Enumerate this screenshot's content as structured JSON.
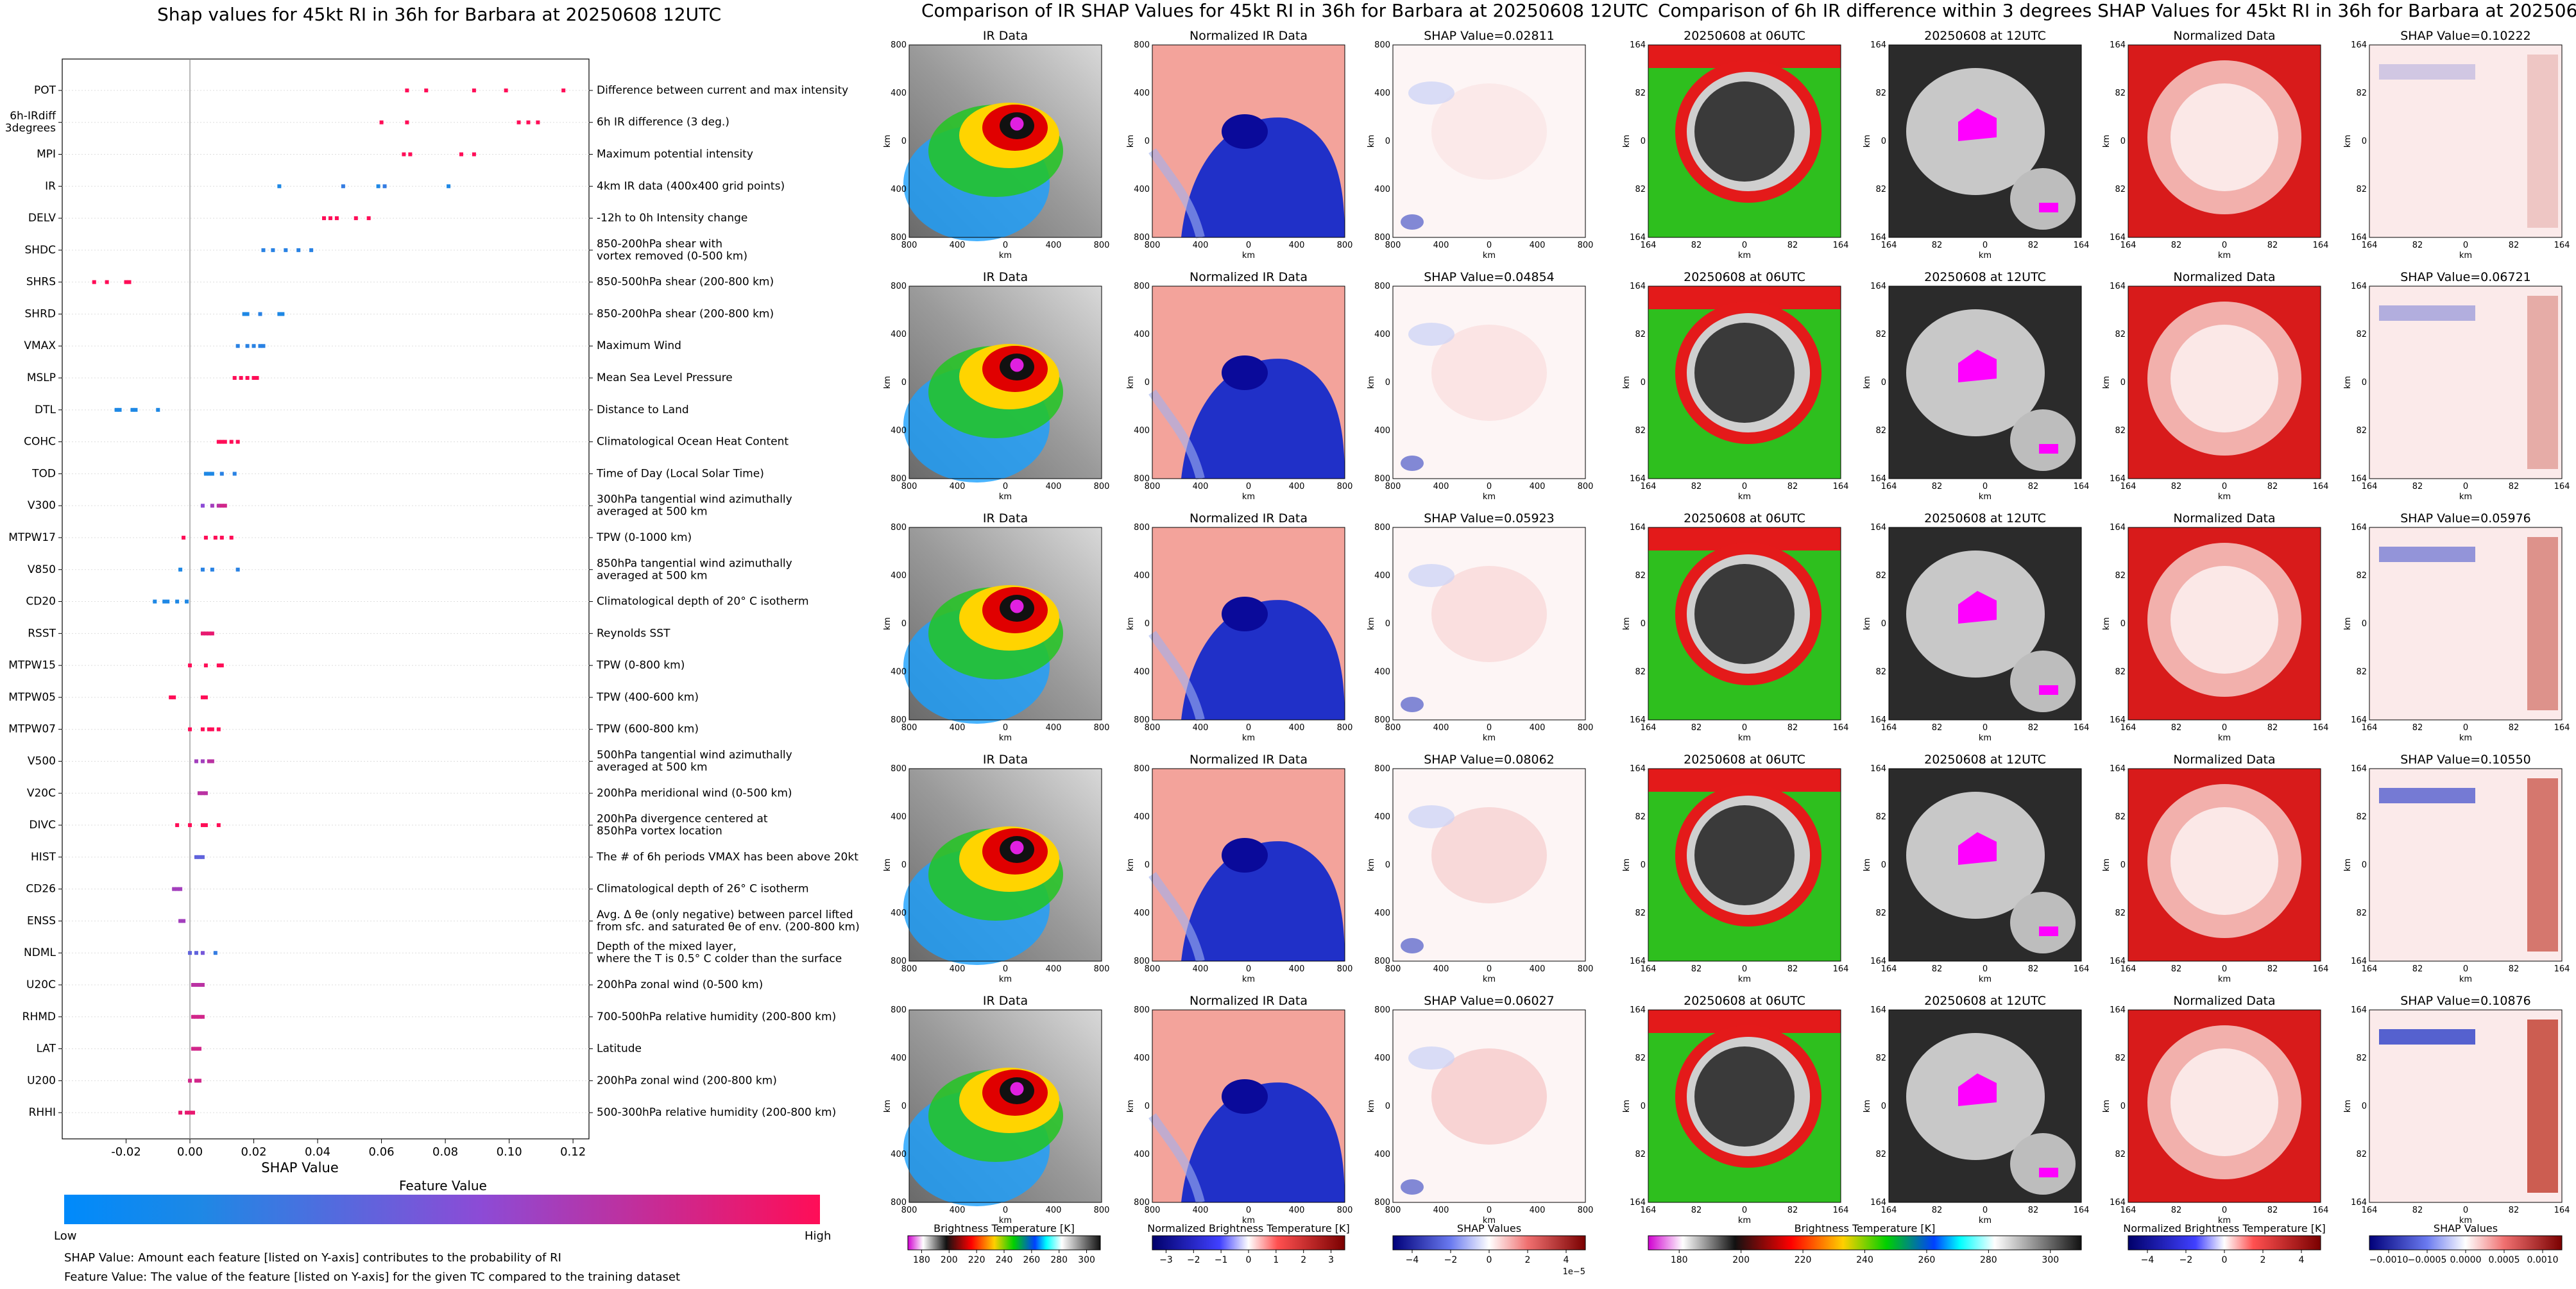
{
  "shap": {
    "title": "Shap values for 45kt RI in 36h for Barbara at 20250608 12UTC",
    "xlabel": "SHAP Value",
    "colorbar_title": "Feature Value",
    "colorbar_low": "Low",
    "colorbar_high": "High",
    "note1": "SHAP Value: Amount each feature [listed on Y-axis] contributes to the probability of RI",
    "note2": "Feature Value: The value of the feature [listed on Y-axis] for the given TC compared to the training dataset",
    "colors": {
      "low": "#1e88e5",
      "mid": "#8c4bd6",
      "high": "#ff0d57"
    }
  },
  "chart_data": [
    {
      "type": "scatter",
      "title": "Shap values for 45kt RI in 36h for Barbara at 20250608 12UTC",
      "xlabel": "SHAP Value",
      "ylabel": "",
      "xlim": [
        -0.04,
        0.125
      ],
      "xticks": [
        "-0.02",
        "0.00",
        "0.02",
        "0.04",
        "0.06",
        "0.08",
        "0.10",
        "0.12"
      ],
      "xtick_values": [
        -0.02,
        0,
        0.02,
        0.04,
        0.06,
        0.08,
        0.1,
        0.12
      ],
      "features": [
        {
          "name": "POT",
          "desc": "Difference between current and max intensity",
          "points": [
            [
              0.068,
              1
            ],
            [
              0.074,
              1
            ],
            [
              0.089,
              1
            ],
            [
              0.099,
              1
            ],
            [
              0.117,
              1
            ]
          ]
        },
        {
          "name": "6h-IRdiff\n3degrees",
          "desc": "6h IR difference (3 deg.)",
          "points": [
            [
              0.06,
              1
            ],
            [
              0.068,
              1
            ],
            [
              0.103,
              1
            ],
            [
              0.106,
              1
            ],
            [
              0.109,
              1
            ]
          ]
        },
        {
          "name": "MPI",
          "desc": "Maximum potential intensity",
          "points": [
            [
              0.067,
              1
            ],
            [
              0.069,
              1
            ],
            [
              0.085,
              1
            ],
            [
              0.089,
              1
            ]
          ]
        },
        {
          "name": "IR",
          "desc": "4km IR data (400x400 grid points)",
          "points": [
            [
              0.028,
              0
            ],
            [
              0.048,
              0.1
            ],
            [
              0.059,
              0
            ],
            [
              0.061,
              0.1
            ],
            [
              0.081,
              0
            ]
          ]
        },
        {
          "name": "DELV",
          "desc": "-12h to 0h Intensity change",
          "points": [
            [
              0.042,
              1
            ],
            [
              0.044,
              1
            ],
            [
              0.046,
              1
            ],
            [
              0.052,
              1
            ],
            [
              0.056,
              1
            ]
          ]
        },
        {
          "name": "SHDC",
          "desc": "850-200hPa shear with\nvortex removed (0-500 km)",
          "points": [
            [
              0.023,
              0.05
            ],
            [
              0.026,
              0.05
            ],
            [
              0.03,
              0.05
            ],
            [
              0.034,
              0.05
            ],
            [
              0.038,
              0.05
            ]
          ]
        },
        {
          "name": "SHRS",
          "desc": "850-500hPa shear (200-800 km)",
          "points": [
            [
              -0.03,
              1
            ],
            [
              -0.026,
              1
            ],
            [
              -0.02,
              1
            ],
            [
              -0.019,
              1
            ]
          ]
        },
        {
          "name": "SHRD",
          "desc": "850-200hPa shear (200-800 km)",
          "points": [
            [
              0.017,
              0
            ],
            [
              0.018,
              0
            ],
            [
              0.022,
              0.05
            ],
            [
              0.028,
              0
            ],
            [
              0.029,
              0
            ]
          ]
        },
        {
          "name": "VMAX",
          "desc": "Maximum Wind",
          "points": [
            [
              0.015,
              0.05
            ],
            [
              0.018,
              0.05
            ],
            [
              0.02,
              0.05
            ],
            [
              0.022,
              0.05
            ],
            [
              0.023,
              0.05
            ]
          ]
        },
        {
          "name": "MSLP",
          "desc": "Mean Sea Level Pressure",
          "points": [
            [
              0.014,
              1
            ],
            [
              0.016,
              1
            ],
            [
              0.018,
              1
            ],
            [
              0.02,
              1
            ],
            [
              0.021,
              1
            ]
          ]
        },
        {
          "name": "DTL",
          "desc": "Distance to Land",
          "points": [
            [
              -0.023,
              0
            ],
            [
              -0.022,
              0
            ],
            [
              -0.018,
              0
            ],
            [
              -0.017,
              0
            ],
            [
              -0.01,
              0
            ]
          ]
        },
        {
          "name": "COHC",
          "desc": "Climatological Ocean Heat Content",
          "points": [
            [
              0.009,
              1
            ],
            [
              0.01,
              1
            ],
            [
              0.011,
              1
            ],
            [
              0.013,
              1
            ],
            [
              0.015,
              1
            ]
          ]
        },
        {
          "name": "TOD",
          "desc": "Time of Day (Local Solar Time)",
          "points": [
            [
              0.005,
              0
            ],
            [
              0.006,
              0
            ],
            [
              0.007,
              0
            ],
            [
              0.01,
              0.05
            ],
            [
              0.014,
              0.05
            ]
          ]
        },
        {
          "name": "V300",
          "desc": "300hPa tangential wind azimuthally\naveraged at 500 km",
          "points": [
            [
              0.004,
              0.5
            ],
            [
              0.007,
              0.6
            ],
            [
              0.009,
              0.7
            ],
            [
              0.01,
              0.8
            ],
            [
              0.011,
              0.8
            ]
          ]
        },
        {
          "name": "MTPW17",
          "desc": "TPW (0-1000 km)",
          "points": [
            [
              -0.002,
              1
            ],
            [
              0.005,
              1
            ],
            [
              0.008,
              1
            ],
            [
              0.01,
              1
            ],
            [
              0.013,
              1
            ]
          ]
        },
        {
          "name": "V850",
          "desc": "850hPa tangential wind azimuthally\naveraged at 500 km",
          "points": [
            [
              -0.003,
              0
            ],
            [
              0.004,
              0.05
            ],
            [
              0.007,
              0.05
            ],
            [
              0.015,
              0.05
            ]
          ]
        },
        {
          "name": "CD20",
          "desc": "Climatological depth of 20° C isotherm",
          "points": [
            [
              -0.011,
              0
            ],
            [
              -0.008,
              0
            ],
            [
              -0.007,
              0
            ],
            [
              -0.004,
              0
            ],
            [
              -0.001,
              0
            ]
          ]
        },
        {
          "name": "RSST",
          "desc": "Reynolds SST",
          "points": [
            [
              0.004,
              0.9
            ],
            [
              0.005,
              0.9
            ],
            [
              0.006,
              0.9
            ],
            [
              0.007,
              0.9
            ]
          ]
        },
        {
          "name": "MTPW15",
          "desc": "TPW (0-800 km)",
          "points": [
            [
              0.0,
              1
            ],
            [
              0.005,
              1
            ],
            [
              0.009,
              1
            ],
            [
              0.01,
              1
            ]
          ]
        },
        {
          "name": "MTPW05",
          "desc": "TPW (400-600 km)",
          "points": [
            [
              -0.006,
              1
            ],
            [
              -0.005,
              1
            ],
            [
              0.004,
              1
            ],
            [
              0.005,
              1
            ]
          ]
        },
        {
          "name": "MTPW07",
          "desc": "TPW (600-800 km)",
          "points": [
            [
              0.0,
              1
            ],
            [
              0.004,
              1
            ],
            [
              0.006,
              1
            ],
            [
              0.007,
              1
            ],
            [
              0.009,
              1
            ]
          ]
        },
        {
          "name": "V500",
          "desc": "500hPa tangential wind azimuthally\naveraged at 500 km",
          "points": [
            [
              0.002,
              0.6
            ],
            [
              0.004,
              0.6
            ],
            [
              0.006,
              0.7
            ],
            [
              0.007,
              0.7
            ]
          ]
        },
        {
          "name": "V20C",
          "desc": "200hPa meridional wind (0-500 km)",
          "points": [
            [
              0.003,
              0.7
            ],
            [
              0.004,
              0.7
            ],
            [
              0.005,
              0.7
            ]
          ]
        },
        {
          "name": "DIVC",
          "desc": "200hPa divergence centered at\n850hPa vortex location",
          "points": [
            [
              -0.004,
              1
            ],
            [
              0.0,
              1
            ],
            [
              0.004,
              1
            ],
            [
              0.005,
              1
            ],
            [
              0.009,
              1
            ]
          ]
        },
        {
          "name": "HIST",
          "desc": "The # of 6h periods VMAX has been above 20kt",
          "points": [
            [
              0.002,
              0.3
            ],
            [
              0.003,
              0.3
            ],
            [
              0.004,
              0.3
            ]
          ]
        },
        {
          "name": "CD26",
          "desc": "Climatological depth of 26° C isotherm",
          "points": [
            [
              -0.005,
              0.6
            ],
            [
              -0.004,
              0.6
            ],
            [
              -0.003,
              0.6
            ]
          ]
        },
        {
          "name": "ENSS",
          "desc": "Avg. Δ θe (only negative) between parcel lifted\nfrom sfc. and saturated θe of env. (200-800 km)",
          "points": [
            [
              -0.003,
              0.6
            ],
            [
              -0.002,
              0.6
            ]
          ]
        },
        {
          "name": "NDML",
          "desc": "Depth of the mixed layer,\nwhere the T is 0.5° C colder than the surface",
          "points": [
            [
              0.0,
              0.3
            ],
            [
              0.002,
              0.3
            ],
            [
              0.004,
              0.4
            ],
            [
              0.008,
              0.1
            ]
          ]
        },
        {
          "name": "U20C",
          "desc": "200hPa zonal wind (0-500 km)",
          "points": [
            [
              0.001,
              0.7
            ],
            [
              0.002,
              0.7
            ],
            [
              0.003,
              0.7
            ],
            [
              0.004,
              0.7
            ]
          ]
        },
        {
          "name": "RHMD",
          "desc": "700-500hPa relative humidity (200-800 km)",
          "points": [
            [
              0.001,
              0.8
            ],
            [
              0.002,
              0.8
            ],
            [
              0.003,
              0.8
            ],
            [
              0.004,
              0.8
            ]
          ]
        },
        {
          "name": "LAT",
          "desc": "Latitude",
          "points": [
            [
              0.001,
              0.8
            ],
            [
              0.002,
              0.8
            ],
            [
              0.003,
              0.8
            ]
          ]
        },
        {
          "name": "U200",
          "desc": "200hPa zonal wind (200-800 km)",
          "points": [
            [
              0.0,
              0.8
            ],
            [
              0.002,
              0.8
            ],
            [
              0.003,
              0.8
            ]
          ]
        },
        {
          "name": "RHHI",
          "desc": "500-300hPa relative humidity (200-800 km)",
          "points": [
            [
              -0.003,
              0.9
            ],
            [
              -0.001,
              0.9
            ],
            [
              0.0,
              0.9
            ],
            [
              0.001,
              0.9
            ]
          ]
        }
      ]
    },
    {
      "type": "heatmap",
      "title": "Comparison of IR SHAP Values for 45kt RI in 36h for Barbara at 20250608 12UTC",
      "column_titles": [
        "IR Data",
        "Normalized IR Data"
      ],
      "shap_titles": [
        "SHAP Value=0.02811",
        "SHAP Value=0.04854",
        "SHAP Value=0.05923",
        "SHAP Value=0.08062",
        "SHAP Value=0.06027"
      ],
      "axis_ticks": [
        "800",
        "400",
        "0",
        "400",
        "800"
      ],
      "axis_label": "km",
      "colorbars": [
        {
          "label": "Brightness Temperature [K]",
          "ticks": [
            "180",
            "200",
            "220",
            "240",
            "260",
            "280",
            "300"
          ]
        },
        {
          "label": "Normalized Brightness Temperature [K]",
          "ticks": [
            "−3",
            "−2",
            "−1",
            "0",
            "1",
            "2",
            "3"
          ]
        },
        {
          "label": "SHAP Values",
          "ticks": [
            "−4",
            "−2",
            "0",
            "2",
            "4"
          ],
          "exponent": "1e−5"
        }
      ]
    },
    {
      "type": "heatmap",
      "title": "Comparison of 6h IR difference within 3 degrees SHAP Values for 45kt RI in 36h for Barbara at 20250608 12UTC",
      "column_titles": [
        "20250608 at 06UTC",
        "20250608 at 12UTC",
        "Normalized Data"
      ],
      "shap_titles": [
        "SHAP Value=0.10222",
        "SHAP Value=0.06721",
        "SHAP Value=0.05976",
        "SHAP Value=0.10550",
        "SHAP Value=0.10876"
      ],
      "axis_ticks": [
        "164",
        "82",
        "0",
        "82",
        "164"
      ],
      "axis_label": "km",
      "colorbars": [
        {
          "label": "Brightness Temperature [K]",
          "ticks": [
            "180",
            "200",
            "220",
            "240",
            "260",
            "280",
            "300"
          ]
        },
        {
          "label": "Normalized Brightness Temperature [K]",
          "ticks": [
            "−4",
            "−2",
            "0",
            "2",
            "4"
          ]
        },
        {
          "label": "SHAP Values",
          "ticks": [
            "−0.0010",
            "−0.0005",
            "0.0000",
            "0.0005",
            "0.0010"
          ]
        }
      ]
    }
  ]
}
